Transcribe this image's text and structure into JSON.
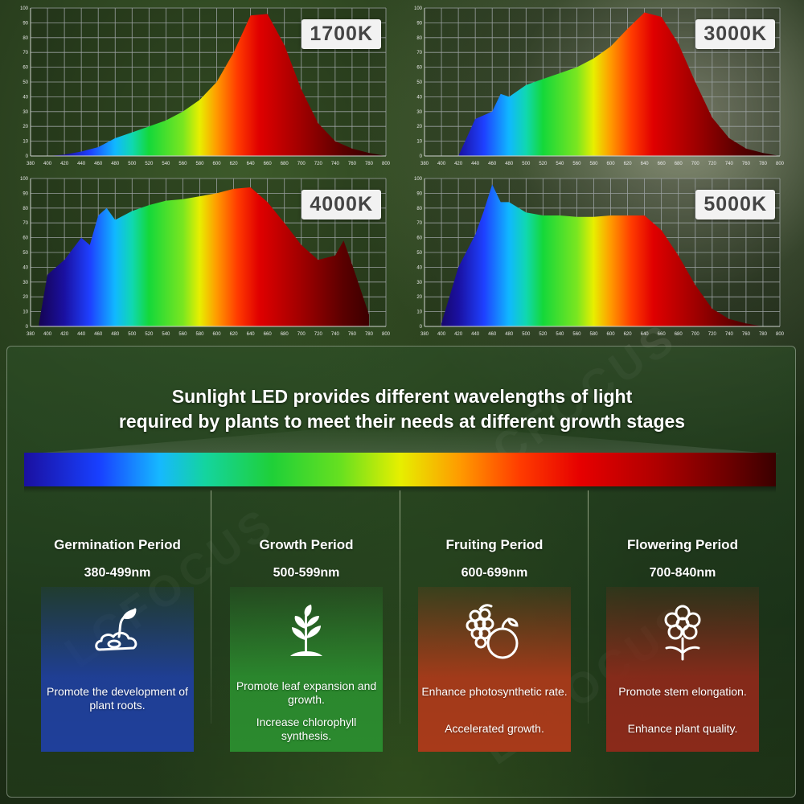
{
  "colors": {
    "germination_card": "#1f3f9a",
    "growth_card": "#2b8a2e",
    "fruiting_card": "#a83a1a",
    "flowering_card": "#8a2a1a",
    "badge_bg": "#f2f2f2",
    "grid_line": "#9aa0a0"
  },
  "chart_data": [
    {
      "type": "area",
      "badge": "1700K",
      "x": [
        400,
        420,
        440,
        460,
        480,
        500,
        520,
        540,
        560,
        580,
        600,
        620,
        640,
        660,
        680,
        700,
        720,
        740,
        760,
        780,
        800
      ],
      "values": [
        0,
        1,
        3,
        6,
        12,
        16,
        20,
        24,
        30,
        38,
        50,
        70,
        95,
        96,
        75,
        45,
        22,
        10,
        5,
        2,
        0
      ],
      "xticks": [
        "380",
        "400",
        "420",
        "440",
        "460",
        "480",
        "500",
        "520",
        "540",
        "560",
        "580",
        "600",
        "620",
        "640",
        "660",
        "680",
        "700",
        "720",
        "740",
        "760",
        "780",
        "800"
      ],
      "yticks": [
        "0",
        "10",
        "20",
        "30",
        "40",
        "50",
        "60",
        "70",
        "80",
        "90",
        "100"
      ],
      "xlim": [
        380,
        800
      ],
      "ylim": [
        0,
        100
      ],
      "grid": true
    },
    {
      "type": "area",
      "badge": "3000K",
      "x": [
        420,
        440,
        460,
        470,
        480,
        500,
        520,
        540,
        560,
        580,
        600,
        620,
        640,
        660,
        680,
        700,
        720,
        740,
        760,
        780,
        800
      ],
      "values": [
        0,
        25,
        30,
        42,
        40,
        48,
        52,
        56,
        60,
        66,
        74,
        86,
        97,
        94,
        76,
        50,
        26,
        12,
        5,
        2,
        0
      ],
      "xticks": [
        "380",
        "400",
        "420",
        "440",
        "460",
        "480",
        "500",
        "520",
        "540",
        "560",
        "580",
        "600",
        "620",
        "640",
        "660",
        "680",
        "700",
        "720",
        "740",
        "760",
        "780",
        "800"
      ],
      "yticks": [
        "0",
        "10",
        "20",
        "30",
        "40",
        "50",
        "60",
        "70",
        "80",
        "90",
        "100"
      ],
      "xlim": [
        380,
        800
      ],
      "ylim": [
        0,
        100
      ],
      "grid": true
    },
    {
      "type": "area",
      "badge": "4000K",
      "x": [
        390,
        400,
        420,
        440,
        450,
        460,
        470,
        480,
        500,
        520,
        540,
        560,
        580,
        600,
        620,
        640,
        660,
        680,
        700,
        720,
        740,
        750,
        760,
        780
      ],
      "values": [
        2,
        35,
        45,
        60,
        55,
        75,
        80,
        72,
        78,
        82,
        85,
        86,
        88,
        90,
        93,
        94,
        84,
        70,
        55,
        45,
        48,
        58,
        42,
        8
      ],
      "xticks": [
        "380",
        "400",
        "420",
        "440",
        "460",
        "480",
        "500",
        "520",
        "540",
        "560",
        "580",
        "600",
        "620",
        "640",
        "660",
        "680",
        "700",
        "720",
        "740",
        "760",
        "780",
        "800"
      ],
      "yticks": [
        "0",
        "10",
        "20",
        "30",
        "40",
        "50",
        "60",
        "70",
        "80",
        "90",
        "100"
      ],
      "xlim": [
        380,
        800
      ],
      "ylim": [
        0,
        100
      ],
      "grid": true
    },
    {
      "type": "area",
      "badge": "5000K",
      "x": [
        400,
        420,
        440,
        450,
        460,
        470,
        480,
        500,
        520,
        540,
        560,
        580,
        600,
        620,
        640,
        660,
        680,
        700,
        720,
        740,
        760,
        780
      ],
      "values": [
        2,
        40,
        62,
        78,
        96,
        84,
        84,
        77,
        75,
        75,
        74,
        74,
        75,
        75,
        75,
        65,
        48,
        28,
        12,
        5,
        2,
        0
      ],
      "xticks": [
        "380",
        "400",
        "420",
        "440",
        "460",
        "480",
        "500",
        "520",
        "540",
        "560",
        "580",
        "600",
        "620",
        "640",
        "660",
        "680",
        "700",
        "720",
        "740",
        "760",
        "780",
        "800"
      ],
      "yticks": [
        "0",
        "10",
        "20",
        "30",
        "40",
        "50",
        "60",
        "70",
        "80",
        "90",
        "100"
      ],
      "xlim": [
        380,
        800
      ],
      "ylim": [
        0,
        100
      ],
      "grid": true
    }
  ],
  "headline": {
    "line1": "Sunlight LED provides different wavelengths of light",
    "line2": "required by plants to meet their needs at different growth stages"
  },
  "watermark": "LCFOCUS",
  "stages": [
    {
      "title": "Germination Period",
      "range": "380-499nm",
      "icon": "seedling-sprout-icon",
      "texts": [
        "Promote the development of plant roots."
      ]
    },
    {
      "title": "Growth Period",
      "range": "500-599nm",
      "icon": "plant-growth-icon",
      "texts": [
        "Promote leaf expansion and growth.",
        "Increase chlorophyll synthesis."
      ]
    },
    {
      "title": "Fruiting Period",
      "range": "600-699nm",
      "icon": "fruit-icon",
      "texts": [
        "Enhance photosynthetic rate.",
        "Accelerated growth."
      ]
    },
    {
      "title": "Flowering Period",
      "range": "700-840nm",
      "icon": "flower-icon",
      "texts": [
        "Promote stem elongation.",
        "Enhance plant quality."
      ]
    }
  ]
}
